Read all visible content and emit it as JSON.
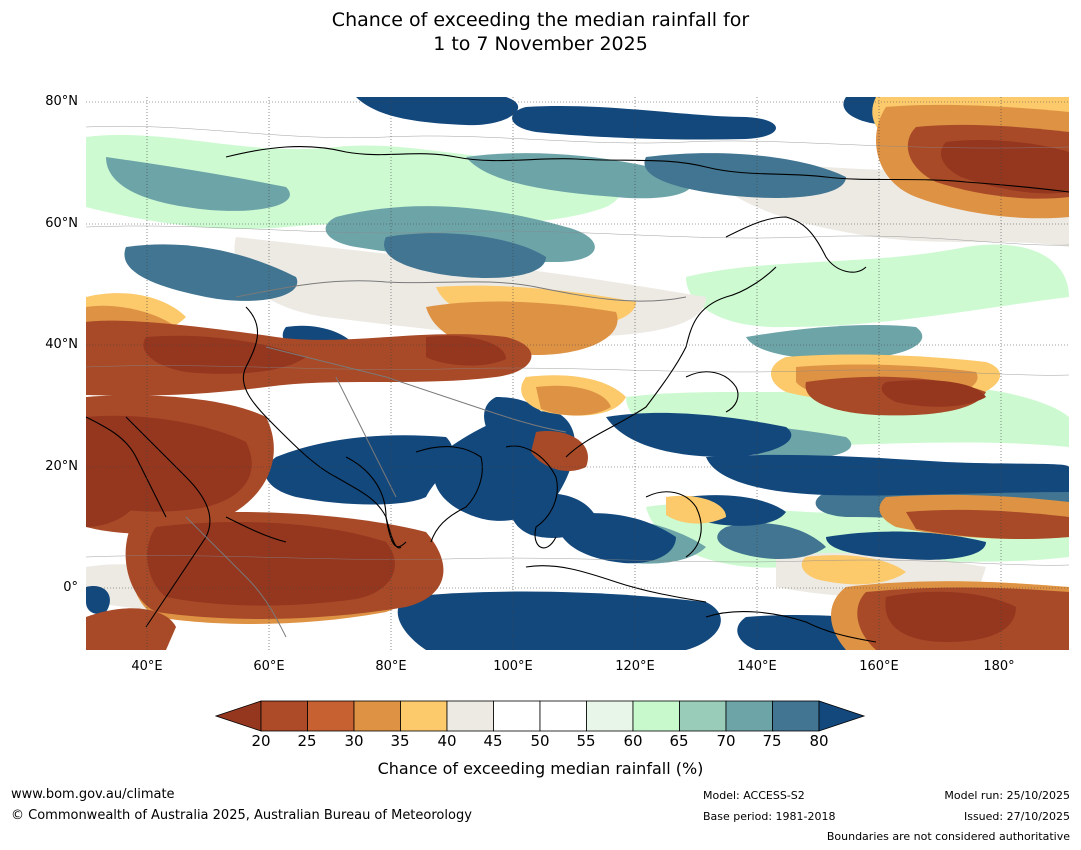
{
  "title_line1": "Chance of exceeding the median rainfall for",
  "title_line2": "1 to 7 November 2025",
  "map": {
    "lat_labels": [
      "80°N",
      "60°N",
      "40°N",
      "20°N",
      "0°"
    ],
    "lon_labels": [
      "40°E",
      "60°E",
      "80°E",
      "100°E",
      "120°E",
      "140°E",
      "160°E",
      "180°"
    ],
    "extent": {
      "lon_min": 30,
      "lon_max": 191,
      "lat_min": -10,
      "lat_max": 80
    },
    "regions": [
      {
        "name": "Arabian Sea / Africa dry",
        "category": "20-25",
        "color": "#95361f"
      },
      {
        "name": "Central Asia dry",
        "category": "25-30",
        "color": "#a84a28"
      },
      {
        "name": "Indian Ocean dry",
        "category": "25-30",
        "color": "#a84a28"
      },
      {
        "name": "Bay of Bengal wet",
        "category": "80+",
        "color": "#13487d"
      },
      {
        "name": "South China Sea wet",
        "category": "80+",
        "color": "#13487d"
      },
      {
        "name": "West Pacific wet band",
        "category": "75-80",
        "color": "#417591"
      },
      {
        "name": "NE Siberia dry",
        "category": "25-30",
        "color": "#a84a28"
      },
      {
        "name": "Equatorial Pacific dry",
        "category": "20-25",
        "color": "#95361f"
      }
    ]
  },
  "colorbar": {
    "ticks": [
      "20",
      "25",
      "30",
      "35",
      "40",
      "45",
      "50",
      "55",
      "60",
      "65",
      "70",
      "75",
      "80"
    ],
    "colors": [
      "#95361f",
      "#ad4a28",
      "#c76131",
      "#de9244",
      "#fcc96b",
      "#edeae4",
      "#ffffff",
      "#ffffff",
      "#e8f5e9",
      "#c8f9cc",
      "#99cdb9",
      "#6da4a8",
      "#417591",
      "#13487d"
    ],
    "label": "Chance of exceeding median rainfall (%)"
  },
  "footer": {
    "url": "www.bom.gov.au/climate",
    "copyright": "© Commonwealth of Australia 2025, Australian Bureau of Meteorology",
    "model": "Model: ACCESS-S2",
    "base_period": "Base period: 1981-2018",
    "model_run": "Model run: 25/10/2025",
    "issued": "Issued: 27/10/2025",
    "disclaimer": "Boundaries are not considered authoritative"
  }
}
